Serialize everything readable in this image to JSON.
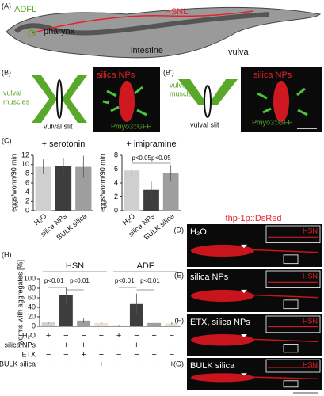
{
  "panels": {
    "A": {
      "label": "(A)",
      "adfl": "ADFL",
      "hsnl": "HSNL",
      "pharynx": "pharynx",
      "intestine": "intestine",
      "vulva": "vulva"
    },
    "B": {
      "label": "(B)",
      "muscles": [
        "vulval",
        "muscles"
      ],
      "slit": "vulval slit",
      "np": "silica NPs",
      "gfp": "Pmyo3::GFP"
    },
    "B2": {
      "label": "(B')",
      "muscles": [
        "vulval",
        "muscles"
      ],
      "slit": "vulval slit",
      "np": "silica NPs",
      "gfp": "Pmyo3::GFP"
    },
    "C": {
      "label": "(C)"
    },
    "reporter": "thp-1p::DsRed",
    "images": [
      {
        "label": "(D)",
        "condition": "H₂O",
        "neuron": "HSN"
      },
      {
        "label": "(E)",
        "condition": "silica NPs",
        "neuron": "HSN"
      },
      {
        "label": "(F)",
        "condition": "ETX, silica NPs",
        "neuron": "HSN"
      },
      {
        "label": "(G)",
        "condition": "BULK silica",
        "neuron": "HSN"
      }
    ],
    "H": {
      "label": "(H)"
    }
  },
  "chart_data": [
    {
      "type": "bar",
      "title": "+ serotonin",
      "y_label": "eggs/worm/90 min",
      "categories": [
        "H₂O",
        "silica NPs",
        "BULK silica"
      ],
      "values": [
        9.5,
        9.6,
        9.5
      ],
      "errors": [
        1.6,
        1.8,
        2.4
      ],
      "colors": [
        "#cfcfcf",
        "#3d3d3d",
        "#9e9e9e"
      ],
      "ylim": [
        0,
        12
      ],
      "yticks": [
        0,
        2,
        4,
        6,
        8,
        10,
        12
      ]
    },
    {
      "type": "bar",
      "title": "+ imipramine",
      "y_label": "eggs/worm/90 min",
      "categories": [
        "H₂O",
        "silica NPs",
        "BULK silica"
      ],
      "values": [
        5.8,
        3.0,
        5.4
      ],
      "errors": [
        0.8,
        1.2,
        1.2
      ],
      "colors": [
        "#cfcfcf",
        "#3d3d3d",
        "#9e9e9e"
      ],
      "ylim": [
        0,
        8
      ],
      "yticks": [
        0,
        2,
        4,
        6,
        8
      ],
      "annotations": [
        "p<0.05",
        "p<0.05"
      ]
    },
    {
      "type": "grouped_bar",
      "y_label": "worms with aggregates [%]",
      "categories": [
        "HSN",
        "ADF"
      ],
      "series": [
        {
          "color": "#cfcfcf",
          "values": [
            8,
            2
          ],
          "errors": [
            2,
            1
          ]
        },
        {
          "color": "#3d3d3d",
          "values": [
            65,
            47
          ],
          "errors": [
            16,
            22
          ]
        },
        {
          "color": "#9e9e9e",
          "values": [
            12,
            7
          ],
          "errors": [
            5,
            3
          ]
        },
        {
          "color": "#ece3cc",
          "values": [
            7,
            6
          ],
          "errors": [
            2,
            2
          ]
        }
      ],
      "ylim": [
        0,
        100
      ],
      "yticks": [
        0,
        20,
        40,
        60,
        80,
        100
      ],
      "annotations": [
        "p<0.01",
        "p<0.01",
        "p<0.01",
        "p<0.01"
      ],
      "conditions": [
        {
          "label": "H₂O",
          "signs": [
            "+",
            "−",
            "−",
            "−",
            "+",
            "−",
            "−",
            "−"
          ]
        },
        {
          "label": "silica NPs",
          "signs": [
            "−",
            "+",
            "+",
            "−",
            "−",
            "+",
            "+",
            "−"
          ]
        },
        {
          "label": "ETX",
          "signs": [
            "−",
            "−",
            "+",
            "−",
            "−",
            "−",
            "+",
            "−"
          ]
        },
        {
          "label": "BULK silica",
          "signs": [
            "−",
            "−",
            "−",
            "+",
            "−",
            "−",
            "−",
            "+"
          ]
        }
      ]
    }
  ]
}
